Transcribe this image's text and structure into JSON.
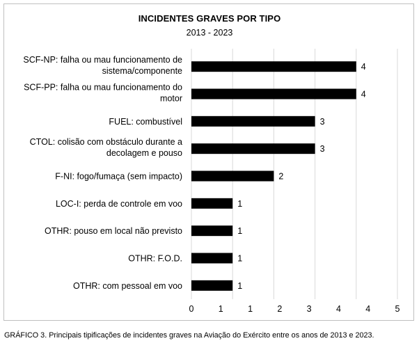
{
  "chart_data": {
    "type": "bar",
    "orientation": "horizontal",
    "title": "INCIDENTES GRAVES POR TIPO",
    "subtitle": "2013 - 2023",
    "categories": [
      "SCF-NP: falha ou mau funcionamento de sistema/componente",
      "SCF-PP: falha ou mau funcionamento do motor",
      "FUEL: combustível",
      "CTOL: colisão com obstáculo durante a decolagem e pouso",
      "F-NI: fogo/fumaça (sem impacto)",
      "LOC-I: perda de controle em voo",
      "OTHR: pouso em local não previsto",
      "OTHR: F.O.D.",
      "OTHR: com pessoal em voo"
    ],
    "category_lines": [
      [
        "SCF-NP: falha ou mau funcionamento de",
        "sistema/componente"
      ],
      [
        "SCF-PP: falha ou mau funcionamento do",
        "motor"
      ],
      [
        "FUEL: combustível"
      ],
      [
        "CTOL: colisão com obstáculo durante a",
        "decolagem e pouso"
      ],
      [
        "F-NI: fogo/fumaça (sem impacto)"
      ],
      [
        "LOC-I: perda de controle em voo"
      ],
      [
        "OTHR: pouso em local não previsto"
      ],
      [
        "OTHR: F.O.D."
      ],
      [
        "OTHR: com pessoal em voo"
      ]
    ],
    "values": [
      4,
      4,
      3,
      3,
      2,
      1,
      1,
      1,
      1
    ],
    "data_labels": [
      "4",
      "4",
      "3",
      "3",
      "2",
      "1",
      "1",
      "1",
      "1"
    ],
    "xlim": [
      0,
      5
    ],
    "x_ticks": [
      "0",
      "1",
      "1",
      "2",
      "3",
      "4",
      "4",
      "5"
    ],
    "bar_color": "#000000",
    "grid": true,
    "gridline_color": "#d9d9d9",
    "legend": "none"
  },
  "caption": "GRÁFICO 3. Principais tipificações de incidentes graves na Aviação do Exército entre os anos de 2013 e 2023."
}
